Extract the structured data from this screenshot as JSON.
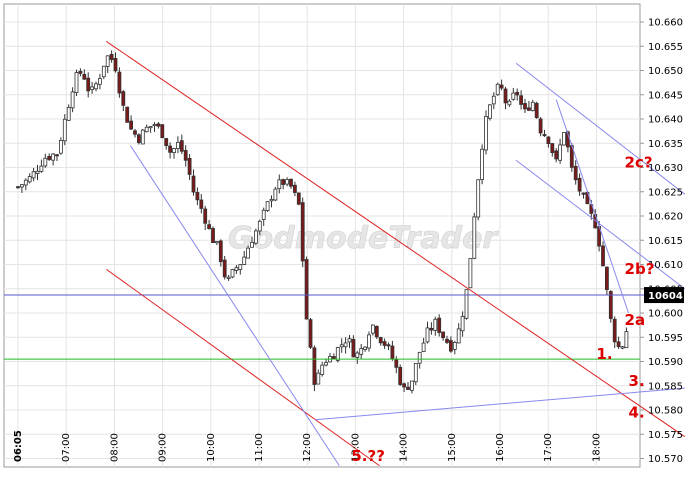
{
  "watermark": "GodmodeTrader",
  "chart_data": {
    "type": "candlestick",
    "y_range": [
      10.57,
      10.66
    ],
    "y_ticks": [
      "10.660",
      "10.655",
      "10.650",
      "10.645",
      "10.640",
      "10.635",
      "10.630",
      "10.625",
      "10.620",
      "10.615",
      "10.610",
      "10.605",
      "10.600",
      "10.595",
      "10.590",
      "10.585",
      "10.580",
      "10.575",
      "10.570"
    ],
    "x_ticks": [
      "06:05",
      "07:00",
      "08:00",
      "09:00",
      "10:00",
      "11:00",
      "12:00",
      "13:00",
      "14:00",
      "15:00",
      "16:00",
      "17:00",
      "18:00"
    ],
    "current_price": {
      "label": "10604",
      "value": 10.6037
    },
    "support_line": 10.5905,
    "close_path": [
      [
        "06:05",
        10.626
      ],
      [
        "06:20",
        10.628
      ],
      [
        "06:35",
        10.632
      ],
      [
        "06:50",
        10.633
      ],
      [
        "07:00",
        10.641
      ],
      [
        "07:10",
        10.648
      ],
      [
        "07:20",
        10.65
      ],
      [
        "07:30",
        10.645
      ],
      [
        "07:40",
        10.648
      ],
      [
        "07:50",
        10.653
      ],
      [
        "08:00",
        10.652
      ],
      [
        "08:10",
        10.643
      ],
      [
        "08:20",
        10.638
      ],
      [
        "08:30",
        10.636
      ],
      [
        "08:40",
        10.638
      ],
      [
        "08:50",
        10.639
      ],
      [
        "09:00",
        10.637
      ],
      [
        "09:10",
        10.633
      ],
      [
        "09:20",
        10.635
      ],
      [
        "09:30",
        10.631
      ],
      [
        "09:40",
        10.624
      ],
      [
        "09:50",
        10.621
      ],
      [
        "10:00",
        10.616
      ],
      [
        "10:10",
        10.613
      ],
      [
        "10:20",
        10.606
      ],
      [
        "10:30",
        10.609
      ],
      [
        "10:40",
        10.611
      ],
      [
        "10:50",
        10.615
      ],
      [
        "11:00",
        10.618
      ],
      [
        "11:10",
        10.622
      ],
      [
        "11:20",
        10.626
      ],
      [
        "11:30",
        10.627
      ],
      [
        "11:40",
        10.626
      ],
      [
        "11:50",
        10.622
      ],
      [
        "12:00",
        10.597
      ],
      [
        "12:10",
        10.585
      ],
      [
        "12:20",
        10.59
      ],
      [
        "12:30",
        10.591
      ],
      [
        "12:40",
        10.593
      ],
      [
        "12:50",
        10.595
      ],
      [
        "13:00",
        10.591
      ],
      [
        "13:10",
        10.593
      ],
      [
        "13:20",
        10.598
      ],
      [
        "13:30",
        10.595
      ],
      [
        "13:40",
        10.593
      ],
      [
        "13:50",
        10.589
      ],
      [
        "14:00",
        10.584
      ],
      [
        "14:10",
        10.586
      ],
      [
        "14:20",
        10.592
      ],
      [
        "14:30",
        10.596
      ],
      [
        "14:40",
        10.598
      ],
      [
        "14:50",
        10.595
      ],
      [
        "15:00",
        10.593
      ],
      [
        "15:10",
        10.597
      ],
      [
        "15:20",
        10.606
      ],
      [
        "15:30",
        10.624
      ],
      [
        "15:40",
        10.638
      ],
      [
        "15:50",
        10.644
      ],
      [
        "16:00",
        10.647
      ],
      [
        "16:10",
        10.642
      ],
      [
        "16:20",
        10.646
      ],
      [
        "16:30",
        10.641
      ],
      [
        "16:40",
        10.644
      ],
      [
        "16:50",
        10.638
      ],
      [
        "17:00",
        10.636
      ],
      [
        "17:10",
        10.631
      ],
      [
        "17:20",
        10.638
      ],
      [
        "17:30",
        10.629
      ],
      [
        "17:40",
        10.625
      ],
      [
        "17:50",
        10.621
      ],
      [
        "18:00",
        10.618
      ],
      [
        "18:10",
        10.608
      ],
      [
        "18:20",
        10.596
      ],
      [
        "18:30",
        10.592
      ],
      [
        "18:40",
        10.598
      ]
    ],
    "trendlines": [
      {
        "color": "#dd2222",
        "from": [
          "07:50",
          10.656
        ],
        "to": [
          "19:50",
          10.5745
        ]
      },
      {
        "color": "#dd2222",
        "from": [
          "07:50",
          10.609
        ],
        "to": [
          "13:30",
          10.5685
        ]
      },
      {
        "color": "#8888ee",
        "from": [
          "08:20",
          10.6345
        ],
        "to": [
          "12:40",
          10.5685
        ]
      },
      {
        "color": "#8888ee",
        "from": [
          "12:10",
          10.578
        ],
        "to": [
          "19:50",
          10.5845
        ]
      },
      {
        "color": "#8888ee",
        "from": [
          "16:20",
          10.6515
        ],
        "to": [
          "19:50",
          10.6245
        ]
      },
      {
        "color": "#8888ee",
        "from": [
          "16:20",
          10.6315
        ],
        "to": [
          "19:50",
          10.605
        ]
      },
      {
        "color": "#8888ee",
        "from": [
          "17:10",
          10.644
        ],
        "to": [
          "18:40",
          10.6
        ]
      }
    ],
    "annotations": [
      {
        "text": "2c?",
        "at": [
          "18:35",
          10.63
        ]
      },
      {
        "text": "2b?",
        "at": [
          "18:35",
          10.608
        ]
      },
      {
        "text": "2a",
        "at": [
          "18:35",
          10.5975
        ]
      },
      {
        "text": "1.",
        "at": [
          "18:00",
          10.5905
        ]
      },
      {
        "text": "3.",
        "at": [
          "18:40",
          10.585
        ]
      },
      {
        "text": "4.",
        "at": [
          "18:40",
          10.5785
        ]
      },
      {
        "text": "5.??",
        "at": [
          "12:55",
          10.5695
        ]
      }
    ]
  }
}
